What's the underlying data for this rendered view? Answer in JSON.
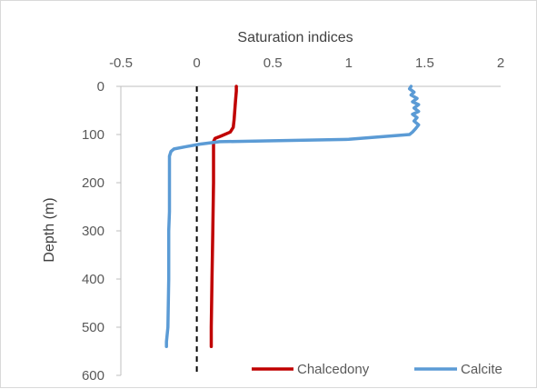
{
  "chart_data": {
    "type": "line",
    "xlabel": "Saturation indices",
    "ylabel": "Depth (m)",
    "xlim": [
      -0.5,
      2
    ],
    "ylim": [
      0,
      600
    ],
    "y_inverted": true,
    "x_axis_position": "top",
    "x_ticks": [
      -0.5,
      0,
      0.5,
      1,
      1.5,
      2
    ],
    "x_tick_labels": [
      "-0.5",
      "0",
      "0.5",
      "1",
      "1.5",
      "2"
    ],
    "y_ticks": [
      0,
      100,
      200,
      300,
      400,
      500,
      600
    ],
    "y_tick_labels": [
      "0",
      "100",
      "200",
      "300",
      "400",
      "500",
      "600"
    ],
    "grid": false,
    "reference_line": {
      "x": 0,
      "style": "dashed",
      "color": "#000000"
    },
    "legend": {
      "placement": "bottom-right"
    },
    "series": [
      {
        "name": "Chalcedony",
        "color": "#c00000",
        "points": [
          [
            0.26,
            0
          ],
          [
            0.26,
            10
          ],
          [
            0.255,
            30
          ],
          [
            0.25,
            50
          ],
          [
            0.245,
            70
          ],
          [
            0.24,
            85
          ],
          [
            0.22,
            95
          ],
          [
            0.16,
            103
          ],
          [
            0.12,
            108
          ],
          [
            0.11,
            115
          ],
          [
            0.11,
            130
          ],
          [
            0.11,
            200
          ],
          [
            0.105,
            300
          ],
          [
            0.1,
            400
          ],
          [
            0.095,
            500
          ],
          [
            0.095,
            540
          ]
        ]
      },
      {
        "name": "Calcite",
        "color": "#5b9bd5",
        "points": [
          [
            1.41,
            0
          ],
          [
            1.4,
            5
          ],
          [
            1.43,
            12
          ],
          [
            1.41,
            18
          ],
          [
            1.45,
            25
          ],
          [
            1.42,
            32
          ],
          [
            1.46,
            38
          ],
          [
            1.43,
            45
          ],
          [
            1.46,
            52
          ],
          [
            1.42,
            58
          ],
          [
            1.45,
            65
          ],
          [
            1.43,
            72
          ],
          [
            1.46,
            80
          ],
          [
            1.44,
            88
          ],
          [
            1.42,
            95
          ],
          [
            1.4,
            100
          ],
          [
            1.0,
            110
          ],
          [
            0.5,
            113
          ],
          [
            0.15,
            115
          ],
          [
            0.02,
            120
          ],
          [
            -0.07,
            125
          ],
          [
            -0.15,
            130
          ],
          [
            -0.17,
            135
          ],
          [
            -0.18,
            145
          ],
          [
            -0.18,
            200
          ],
          [
            -0.18,
            260
          ],
          [
            -0.185,
            300
          ],
          [
            -0.185,
            400
          ],
          [
            -0.19,
            500
          ],
          [
            -0.2,
            530
          ],
          [
            -0.2,
            540
          ]
        ]
      }
    ]
  }
}
